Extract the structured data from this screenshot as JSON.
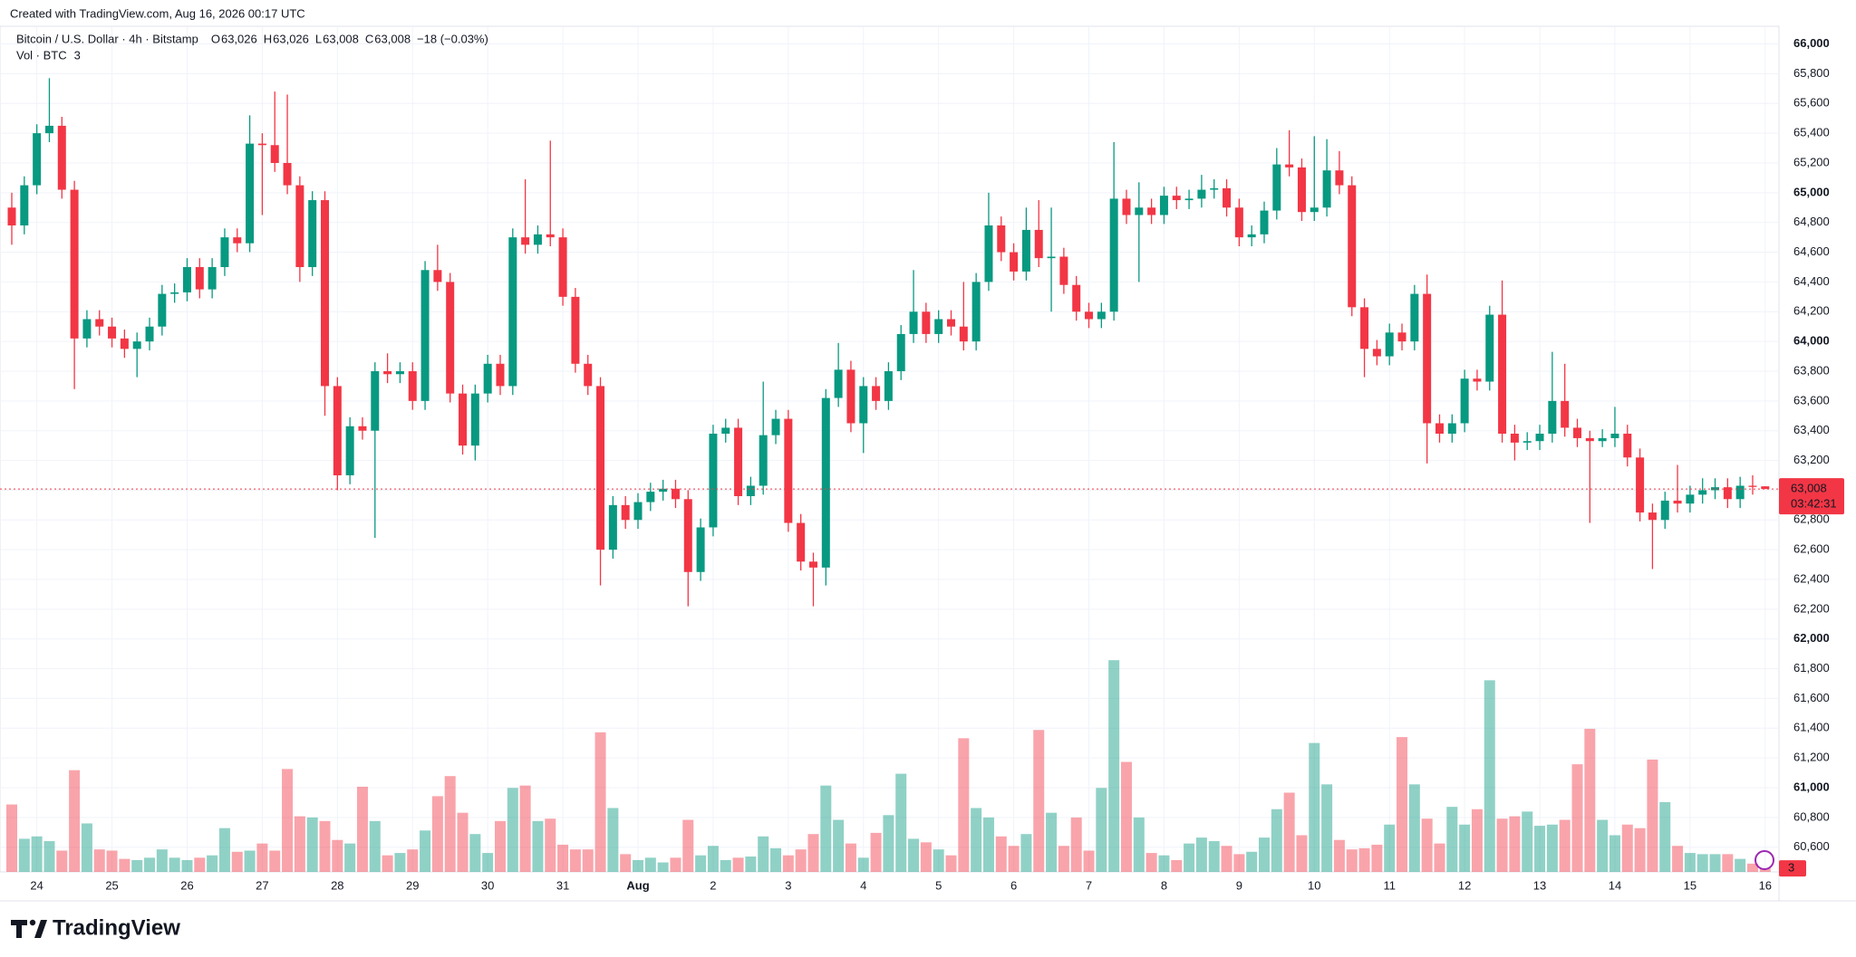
{
  "header": {
    "created": "Created with TradingView.com, Aug 16, 2026 00:17 UTC",
    "logo": "TradingView"
  },
  "chart_data": {
    "type": "candlestick",
    "symbol": "Bitcoin / U.S. Dollar · 4h · Bitstamp",
    "legend": [
      {
        "label": "O",
        "value": "63,026"
      },
      {
        "label": "H",
        "value": "63,026"
      },
      {
        "label": "L",
        "value": "63,008"
      },
      {
        "label": "C",
        "value": "63,008"
      }
    ],
    "change": "−18 (−0.03%)",
    "volume_title": "Vol · BTC",
    "last_price_label": "63,008",
    "countdown": "03:42:31",
    "up_color": "#089981",
    "down_color": "#f23645",
    "grid": true,
    "categories": [
      null,
      null,
      "24",
      null,
      null,
      null,
      null,
      null,
      "25",
      null,
      null,
      null,
      null,
      null,
      "26",
      null,
      null,
      null,
      null,
      null,
      "27",
      null,
      null,
      null,
      null,
      null,
      "28",
      null,
      null,
      null,
      null,
      null,
      "29",
      null,
      null,
      null,
      null,
      null,
      "30",
      null,
      null,
      null,
      null,
      null,
      "31",
      null,
      null,
      null,
      null,
      null,
      "Aug",
      null,
      null,
      null,
      null,
      null,
      "2",
      null,
      null,
      null,
      null,
      null,
      "3",
      null,
      null,
      null,
      null,
      null,
      "4",
      null,
      null,
      null,
      null,
      null,
      "5",
      null,
      null,
      null,
      null,
      null,
      "6",
      null,
      null,
      null,
      null,
      null,
      "7",
      null,
      null,
      null,
      null,
      null,
      "8",
      null,
      null,
      null,
      null,
      null,
      "9",
      null,
      null,
      null,
      null,
      null,
      "10",
      null,
      null,
      null,
      null,
      null,
      "11",
      null,
      null,
      null,
      null,
      null,
      "12",
      null,
      null,
      null,
      null,
      null,
      "13",
      null,
      null,
      null,
      null,
      null,
      "14",
      null,
      null,
      null,
      null,
      null,
      "15",
      null,
      null,
      null,
      null,
      null,
      "16"
    ],
    "candles": [
      [
        64900,
        65000,
        64650,
        64780
      ],
      [
        64780,
        65110,
        64720,
        65050
      ],
      [
        65050,
        65460,
        64990,
        65400
      ],
      [
        65400,
        65770,
        65340,
        65450
      ],
      [
        65450,
        65510,
        64960,
        65020
      ],
      [
        65020,
        65080,
        63680,
        64020
      ],
      [
        64020,
        64210,
        63960,
        64150
      ],
      [
        64150,
        64210,
        64040,
        64100
      ],
      [
        64100,
        64160,
        63960,
        64020
      ],
      [
        64020,
        64080,
        63890,
        63950
      ],
      [
        63950,
        64060,
        63760,
        64000
      ],
      [
        64000,
        64160,
        63940,
        64100
      ],
      [
        64100,
        64380,
        64040,
        64320
      ],
      [
        64320,
        64390,
        64260,
        64330
      ],
      [
        64330,
        64560,
        64270,
        64500
      ],
      [
        64500,
        64560,
        64290,
        64350
      ],
      [
        64350,
        64560,
        64290,
        64500
      ],
      [
        64500,
        64760,
        64440,
        64700
      ],
      [
        64700,
        64760,
        64600,
        64660
      ],
      [
        64660,
        65520,
        64600,
        65330
      ],
      [
        65330,
        65400,
        64850,
        65320
      ],
      [
        65320,
        65680,
        65140,
        65200
      ],
      [
        65200,
        65660,
        64990,
        65050
      ],
      [
        65050,
        65110,
        64400,
        64500
      ],
      [
        64500,
        65010,
        64440,
        64950
      ],
      [
        64950,
        65010,
        63500,
        63700
      ],
      [
        63700,
        63760,
        63000,
        63100
      ],
      [
        63100,
        63490,
        63040,
        63430
      ],
      [
        63430,
        63490,
        63340,
        63400
      ],
      [
        63400,
        63860,
        62680,
        63800
      ],
      [
        63800,
        63920,
        63720,
        63780
      ],
      [
        63780,
        63860,
        63720,
        63800
      ],
      [
        63800,
        63860,
        63540,
        63600
      ],
      [
        63600,
        64540,
        63540,
        64480
      ],
      [
        64480,
        64650,
        64340,
        64400
      ],
      [
        64400,
        64460,
        63590,
        63650
      ],
      [
        63650,
        63710,
        63240,
        63300
      ],
      [
        63300,
        63710,
        63200,
        63650
      ],
      [
        63650,
        63910,
        63590,
        63850
      ],
      [
        63850,
        63910,
        63640,
        63700
      ],
      [
        63700,
        64760,
        63640,
        64700
      ],
      [
        64700,
        65090,
        64590,
        64650
      ],
      [
        64650,
        64780,
        64590,
        64720
      ],
      [
        64720,
        65350,
        64640,
        64700
      ],
      [
        64700,
        64760,
        64240,
        64300
      ],
      [
        64300,
        64360,
        63790,
        63850
      ],
      [
        63850,
        63910,
        63640,
        63700
      ],
      [
        63700,
        63760,
        62360,
        62600
      ],
      [
        62600,
        62960,
        62540,
        62900
      ],
      [
        62900,
        62960,
        62740,
        62800
      ],
      [
        62800,
        62980,
        62740,
        62920
      ],
      [
        62920,
        63050,
        62860,
        62990
      ],
      [
        62990,
        63070,
        62930,
        63010
      ],
      [
        63010,
        63070,
        62880,
        62940
      ],
      [
        62940,
        63000,
        62220,
        62450
      ],
      [
        62450,
        62810,
        62390,
        62750
      ],
      [
        62750,
        63440,
        62690,
        63380
      ],
      [
        63380,
        63480,
        63320,
        63420
      ],
      [
        63420,
        63480,
        62900,
        62960
      ],
      [
        62960,
        63090,
        62900,
        63030
      ],
      [
        63030,
        63730,
        62970,
        63370
      ],
      [
        63370,
        63540,
        63310,
        63480
      ],
      [
        63480,
        63540,
        62720,
        62780
      ],
      [
        62780,
        62840,
        62460,
        62520
      ],
      [
        62520,
        62580,
        62220,
        62480
      ],
      [
        62480,
        63680,
        62360,
        63620
      ],
      [
        63620,
        63990,
        63560,
        63810
      ],
      [
        63810,
        63870,
        63390,
        63450
      ],
      [
        63450,
        63760,
        63250,
        63700
      ],
      [
        63700,
        63760,
        63540,
        63600
      ],
      [
        63600,
        63860,
        63540,
        63800
      ],
      [
        63800,
        64110,
        63740,
        64050
      ],
      [
        64050,
        64480,
        63990,
        64200
      ],
      [
        64200,
        64260,
        63990,
        64050
      ],
      [
        64050,
        64210,
        63990,
        64150
      ],
      [
        64150,
        64210,
        64040,
        64100
      ],
      [
        64100,
        64400,
        63940,
        64000
      ],
      [
        64000,
        64460,
        63940,
        64400
      ],
      [
        64400,
        65000,
        64340,
        64780
      ],
      [
        64780,
        64840,
        64540,
        64600
      ],
      [
        64600,
        64660,
        64410,
        64470
      ],
      [
        64470,
        64900,
        64410,
        64750
      ],
      [
        64750,
        64950,
        64500,
        64560
      ],
      [
        64560,
        64900,
        64200,
        64570
      ],
      [
        64570,
        64630,
        64320,
        64380
      ],
      [
        64380,
        64440,
        64140,
        64200
      ],
      [
        64200,
        64260,
        64090,
        64150
      ],
      [
        64150,
        64260,
        64090,
        64200
      ],
      [
        64200,
        65340,
        64140,
        64960
      ],
      [
        64960,
        65020,
        64790,
        64850
      ],
      [
        64850,
        65070,
        64400,
        64900
      ],
      [
        64900,
        64960,
        64790,
        64850
      ],
      [
        64850,
        65040,
        64790,
        64980
      ],
      [
        64980,
        65040,
        64890,
        64950
      ],
      [
        64950,
        65020,
        64890,
        64960
      ],
      [
        64960,
        65120,
        64900,
        65020
      ],
      [
        65020,
        65090,
        64960,
        65030
      ],
      [
        65030,
        65090,
        64840,
        64900
      ],
      [
        64900,
        64960,
        64640,
        64700
      ],
      [
        64700,
        64780,
        64640,
        64720
      ],
      [
        64720,
        64940,
        64660,
        64880
      ],
      [
        64880,
        65300,
        64820,
        65190
      ],
      [
        65190,
        65420,
        65110,
        65170
      ],
      [
        65170,
        65230,
        64810,
        64870
      ],
      [
        64870,
        65380,
        64810,
        64900
      ],
      [
        64900,
        65360,
        64840,
        65150
      ],
      [
        65150,
        65280,
        64990,
        65050
      ],
      [
        65050,
        65110,
        64170,
        64230
      ],
      [
        64230,
        64290,
        63760,
        63950
      ],
      [
        63950,
        64010,
        63840,
        63900
      ],
      [
        63900,
        64120,
        63840,
        64060
      ],
      [
        64060,
        64120,
        63940,
        64000
      ],
      [
        64000,
        64380,
        63940,
        64320
      ],
      [
        64320,
        64450,
        63180,
        63450
      ],
      [
        63450,
        63510,
        63320,
        63380
      ],
      [
        63380,
        63510,
        63320,
        63450
      ],
      [
        63450,
        63810,
        63390,
        63750
      ],
      [
        63750,
        63810,
        63670,
        63730
      ],
      [
        63730,
        64240,
        63670,
        64180
      ],
      [
        64180,
        64410,
        63320,
        63380
      ],
      [
        63380,
        63440,
        63200,
        63320
      ],
      [
        63320,
        63390,
        63270,
        63330
      ],
      [
        63330,
        63440,
        63270,
        63380
      ],
      [
        63380,
        63930,
        63320,
        63600
      ],
      [
        63600,
        63850,
        63360,
        63420
      ],
      [
        63420,
        63480,
        63290,
        63350
      ],
      [
        63350,
        63400,
        62780,
        63330
      ],
      [
        63330,
        63410,
        63290,
        63350
      ],
      [
        63350,
        63560,
        63290,
        63380
      ],
      [
        63380,
        63440,
        63160,
        63220
      ],
      [
        63220,
        63280,
        62790,
        62850
      ],
      [
        62850,
        62910,
        62470,
        62800
      ],
      [
        62800,
        62990,
        62740,
        62930
      ],
      [
        62930,
        63170,
        62850,
        62910
      ],
      [
        62910,
        63030,
        62850,
        62970
      ],
      [
        62970,
        63080,
        62910,
        63000
      ],
      [
        63000,
        63080,
        62940,
        63020
      ],
      [
        63020,
        63080,
        62880,
        62940
      ],
      [
        62940,
        63090,
        62880,
        63030
      ],
      [
        63030,
        63100,
        62970,
        63026
      ],
      [
        63026,
        63026,
        63008,
        63008
      ]
    ],
    "volume": [
      57,
      28,
      30,
      26,
      18,
      86,
      41,
      19,
      18,
      11,
      10,
      12,
      19,
      12,
      10,
      12,
      14,
      37,
      17,
      18,
      24,
      18,
      87,
      47,
      46,
      43,
      27,
      24,
      72,
      43,
      14,
      16,
      19,
      35,
      64,
      81,
      50,
      32,
      16,
      43,
      71,
      73,
      43,
      45,
      23,
      19,
      19,
      118,
      54,
      15,
      10,
      12,
      8,
      12,
      44,
      14,
      22,
      10,
      12,
      13,
      30,
      20,
      14,
      19,
      32,
      73,
      44,
      24,
      12,
      33,
      48,
      83,
      28,
      25,
      19,
      14,
      113,
      54,
      46,
      30,
      22,
      32,
      120,
      50,
      22,
      46,
      18,
      71,
      179,
      93,
      46,
      16,
      14,
      10,
      24,
      29,
      26,
      22,
      15,
      17,
      29,
      53,
      67,
      31,
      109,
      74,
      27,
      19,
      20,
      23,
      40,
      114,
      74,
      45,
      24,
      55,
      40,
      53,
      162,
      45,
      47,
      51,
      39,
      40,
      44,
      91,
      121,
      44,
      31,
      40,
      37,
      95,
      59,
      22,
      16,
      15,
      15,
      15,
      11,
      7,
      3
    ],
    "volume_lim": [
      0,
      715
    ],
    "ylim": [
      60434,
      66119
    ],
    "yticks": [
      {
        "value": 60600,
        "label": "60,600"
      },
      {
        "value": 60800,
        "label": "60,800"
      },
      {
        "value": 61000,
        "label": "61,000"
      },
      {
        "value": 61200,
        "label": "61,200"
      },
      {
        "value": 61400,
        "label": "61,400"
      },
      {
        "value": 61600,
        "label": "61,600"
      },
      {
        "value": 61800,
        "label": "61,800"
      },
      {
        "value": 62000,
        "label": "62,000"
      },
      {
        "value": 62200,
        "label": "62,200"
      },
      {
        "value": 62400,
        "label": "62,400"
      },
      {
        "value": 62600,
        "label": "62,600"
      },
      {
        "value": 62800,
        "label": "62,800"
      },
      {
        "value": 63000,
        "label": "63,000"
      },
      {
        "value": 63200,
        "label": "63,200"
      },
      {
        "value": 63400,
        "label": "63,400"
      },
      {
        "value": 63600,
        "label": "63,600"
      },
      {
        "value": 63800,
        "label": "63,800"
      },
      {
        "value": 64000,
        "label": "64,000"
      },
      {
        "value": 64200,
        "label": "64,200"
      },
      {
        "value": 64400,
        "label": "64,400"
      },
      {
        "value": 64600,
        "label": "64,600"
      },
      {
        "value": 64800,
        "label": "64,800"
      },
      {
        "value": 65000,
        "label": "65,000"
      },
      {
        "value": 65200,
        "label": "65,200"
      },
      {
        "value": 65400,
        "label": "65,400"
      },
      {
        "value": 65600,
        "label": "65,600"
      },
      {
        "value": 65800,
        "label": "65,800"
      },
      {
        "value": 66000,
        "label": "66,000"
      }
    ]
  }
}
